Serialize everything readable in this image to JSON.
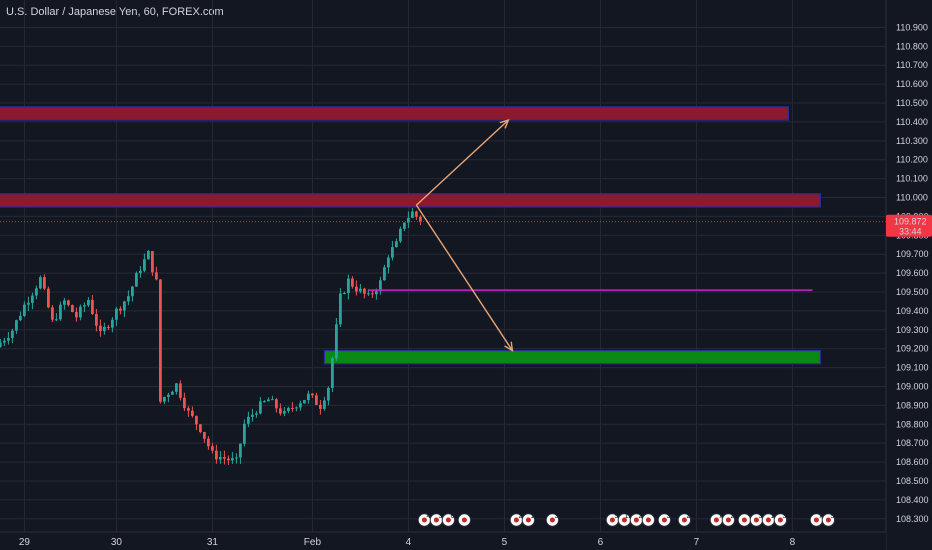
{
  "chart_data": {
    "type": "candlestick",
    "title": "U.S. Dollar / Japanese Yen, 60, FOREX.com",
    "ylim": [
      108.23,
      110.95
    ],
    "y_ticks": [
      "110.900",
      "110.800",
      "110.700",
      "110.600",
      "110.500",
      "110.400",
      "110.300",
      "110.200",
      "110.100",
      "110.000",
      "109.900",
      "109.800",
      "109.700",
      "109.600",
      "109.500",
      "109.400",
      "109.300",
      "109.200",
      "109.100",
      "109.000",
      "108.900",
      "108.800",
      "108.700",
      "108.600",
      "108.500",
      "108.400",
      "108.300"
    ],
    "y_tick_values": [
      110.9,
      110.8,
      110.7,
      110.6,
      110.5,
      110.4,
      110.3,
      110.2,
      110.1,
      110.0,
      109.9,
      109.8,
      109.7,
      109.6,
      109.5,
      109.4,
      109.3,
      109.2,
      109.1,
      109.0,
      108.9,
      108.8,
      108.7,
      108.6,
      108.5,
      108.4,
      108.3
    ],
    "x_ticks": [
      "29",
      "30",
      "31",
      "Feb",
      "4",
      "5",
      "6",
      "7",
      "8"
    ],
    "x_tick_bar_index": [
      7,
      30,
      54,
      79,
      103,
      127,
      151,
      175,
      199
    ],
    "bar_count": 215,
    "current_price": "109.872",
    "current_price_value": 109.872,
    "countdown": "33:44",
    "grid": true,
    "colors": {
      "background": "#131722",
      "grid": "#252a36",
      "text": "#d1d4dc",
      "up": "#26a69a",
      "down": "#ef5350",
      "resistance_zone": "#8b1a2c",
      "zone_border": "#2a2a9a",
      "support_zone": "#0a8a15",
      "level_line": "#cc22cc",
      "arrow": "#e8a474",
      "price_tag": "#f23645"
    },
    "anchors": [
      {
        "i": 0,
        "v": 109.21
      },
      {
        "i": 4,
        "v": 109.3
      },
      {
        "i": 7,
        "v": 109.43
      },
      {
        "i": 11,
        "v": 109.57
      },
      {
        "i": 14,
        "v": 109.34
      },
      {
        "i": 17,
        "v": 109.45
      },
      {
        "i": 20,
        "v": 109.37
      },
      {
        "i": 23,
        "v": 109.46
      },
      {
        "i": 26,
        "v": 109.27
      },
      {
        "i": 30,
        "v": 109.4
      },
      {
        "i": 33,
        "v": 109.48
      },
      {
        "i": 36,
        "v": 109.63
      },
      {
        "i": 38,
        "v": 109.7
      },
      {
        "i": 40,
        "v": 109.55
      },
      {
        "i": 41,
        "v": 108.92
      },
      {
        "i": 43,
        "v": 108.97
      },
      {
        "i": 45,
        "v": 109.01
      },
      {
        "i": 48,
        "v": 108.86
      },
      {
        "i": 51,
        "v": 108.78
      },
      {
        "i": 54,
        "v": 108.64
      },
      {
        "i": 57,
        "v": 108.62
      },
      {
        "i": 60,
        "v": 108.6
      },
      {
        "i": 62,
        "v": 108.8
      },
      {
        "i": 65,
        "v": 108.88
      },
      {
        "i": 68,
        "v": 108.93
      },
      {
        "i": 72,
        "v": 108.85
      },
      {
        "i": 75,
        "v": 108.91
      },
      {
        "i": 78,
        "v": 108.95
      },
      {
        "i": 81,
        "v": 108.9
      },
      {
        "i": 83,
        "v": 109.0
      },
      {
        "i": 84,
        "v": 109.15
      },
      {
        "i": 86,
        "v": 109.47
      },
      {
        "i": 88,
        "v": 109.56
      },
      {
        "i": 90,
        "v": 109.52
      },
      {
        "i": 93,
        "v": 109.47
      },
      {
        "i": 96,
        "v": 109.55
      },
      {
        "i": 98,
        "v": 109.7
      },
      {
        "i": 100,
        "v": 109.75
      },
      {
        "i": 102,
        "v": 109.88
      },
      {
        "i": 104,
        "v": 109.92
      },
      {
        "i": 106,
        "v": 109.88
      }
    ],
    "zones": [
      {
        "name": "upper-resistance",
        "type": "resistance",
        "y_low": 110.41,
        "y_high": 110.48,
        "from_bar": 0,
        "to_bar": 198
      },
      {
        "name": "lower-resistance",
        "type": "resistance",
        "y_low": 109.95,
        "y_high": 110.02,
        "from_bar": 0,
        "to_bar": 206
      },
      {
        "name": "support",
        "type": "support",
        "y_low": 109.12,
        "y_high": 109.19,
        "from_bar": 82,
        "to_bar": 206
      }
    ],
    "level_lines": [
      {
        "name": "magenta-level",
        "y": 109.51,
        "from_bar": 93,
        "to_bar": 204
      }
    ],
    "projections": [
      {
        "name": "up-arrow",
        "from_bar": 105,
        "from_y": 109.96,
        "to_bar": 128,
        "to_y": 110.41
      },
      {
        "name": "down-arrow",
        "from_bar": 105,
        "from_y": 109.96,
        "to_bar": 129,
        "to_y": 109.19
      }
    ],
    "event_markers": [
      {
        "bar": 107,
        "label": "4"
      },
      {
        "bar": 110,
        "label": "3"
      },
      {
        "bar": 113,
        "label": "6"
      },
      {
        "bar": 117,
        "label": ""
      },
      {
        "bar": 130,
        "label": "2"
      },
      {
        "bar": 133,
        "label": "1"
      },
      {
        "bar": 139,
        "label": "3"
      },
      {
        "bar": 154,
        "label": "5"
      },
      {
        "bar": 157,
        "label": "12"
      },
      {
        "bar": 160,
        "label": "2"
      },
      {
        "bar": 163,
        "label": ""
      },
      {
        "bar": 167,
        "label": "3"
      },
      {
        "bar": 172,
        "label": "2"
      },
      {
        "bar": 180,
        "label": "7"
      },
      {
        "bar": 183,
        "label": "2"
      },
      {
        "bar": 187,
        "label": ""
      },
      {
        "bar": 190,
        "label": "3"
      },
      {
        "bar": 193,
        "label": "1"
      },
      {
        "bar": 196,
        "label": "3"
      },
      {
        "bar": 205,
        "label": "7"
      },
      {
        "bar": 208,
        "label": "5"
      }
    ]
  }
}
